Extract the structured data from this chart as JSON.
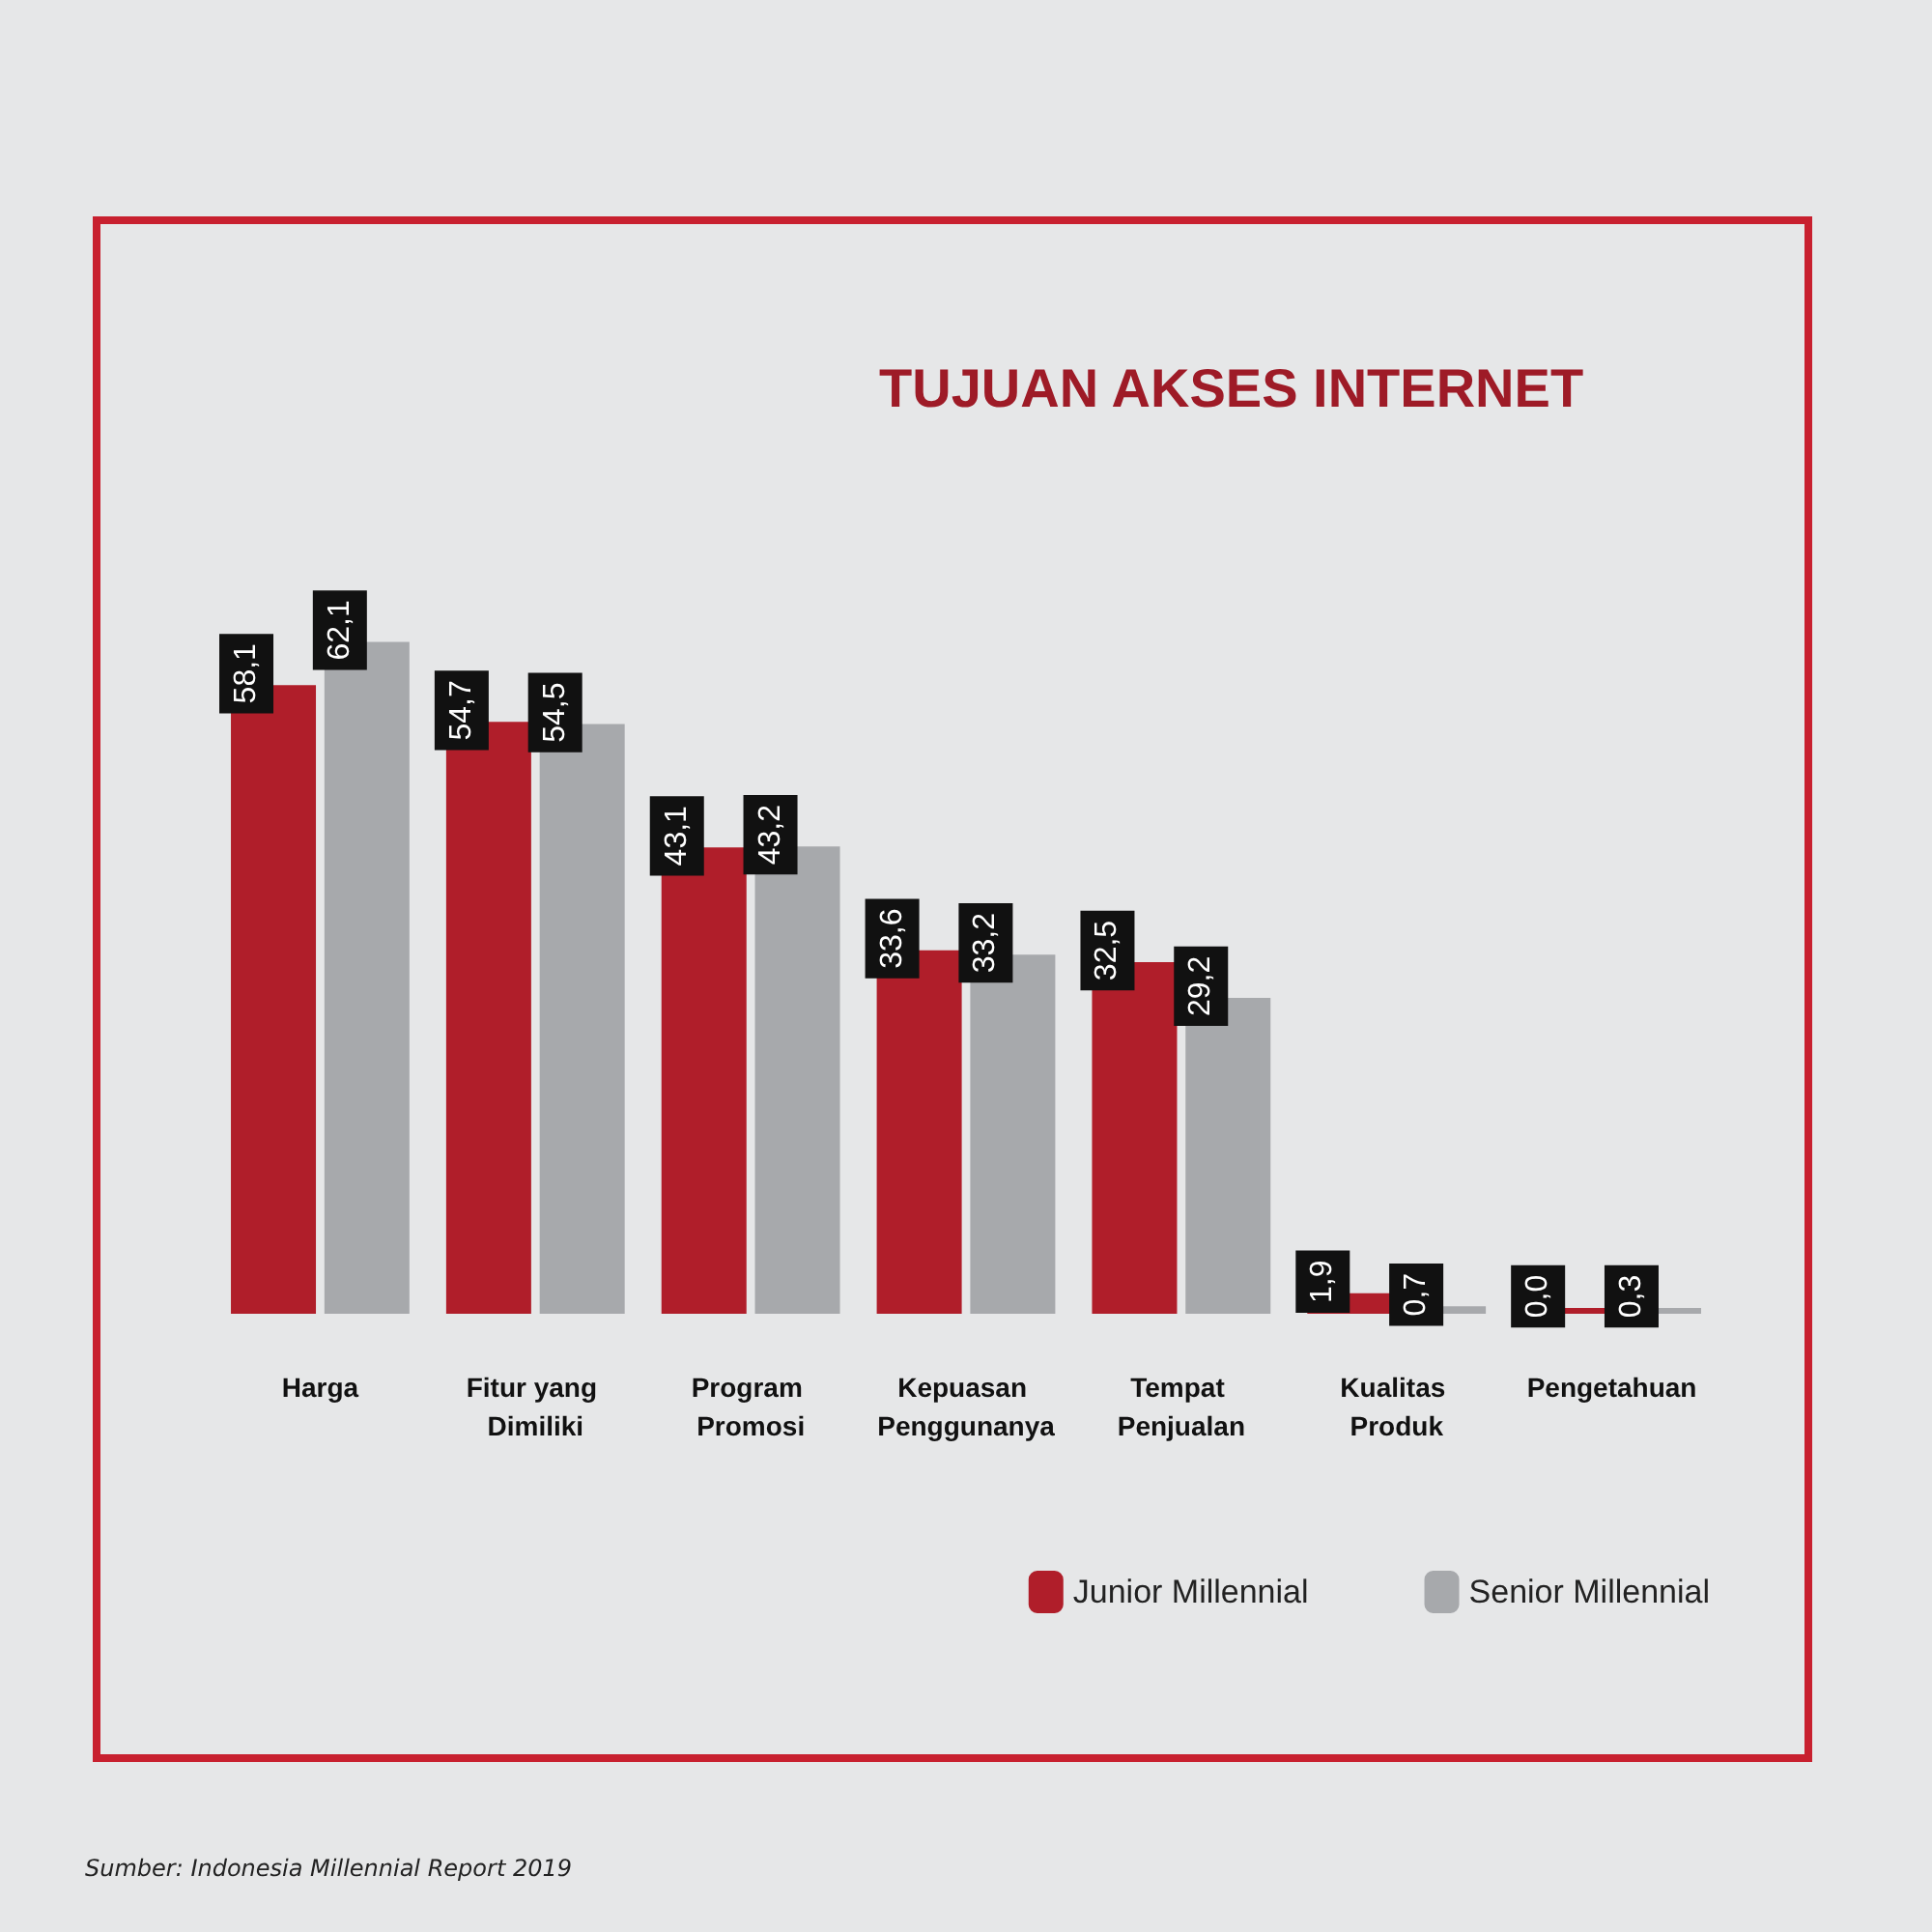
{
  "chart_data": {
    "type": "bar",
    "title": "TUJUAN AKSES INTERNET",
    "categories": [
      "Harga",
      "Fitur yang Dimiliki",
      "Program Promosi",
      "Kepuasan Penggunanya",
      "Tempat Penjualan",
      "Kualitas Produk",
      "Pengetahuan"
    ],
    "series": [
      {
        "name": "Junior Millennial",
        "color": "#b01e2a",
        "values": [
          58.1,
          54.7,
          43.1,
          33.6,
          32.5,
          1.9,
          0.0
        ],
        "value_labels": [
          "58,1",
          "54,7",
          "43,1",
          "33,6",
          "32,5",
          "1,9",
          "0,0"
        ]
      },
      {
        "name": "Senior Millennial",
        "color": "#a7a9ac",
        "values": [
          62.1,
          54.5,
          43.2,
          33.2,
          29.2,
          0.7,
          0.3
        ],
        "value_labels": [
          "62,1",
          "54,5",
          "43,2",
          "33,2",
          "29,2",
          "0,7",
          "0,3"
        ]
      }
    ],
    "legend": "bottom right",
    "annotations": [
      "Sumber: Indonesia Millennial Report 2019"
    ]
  }
}
